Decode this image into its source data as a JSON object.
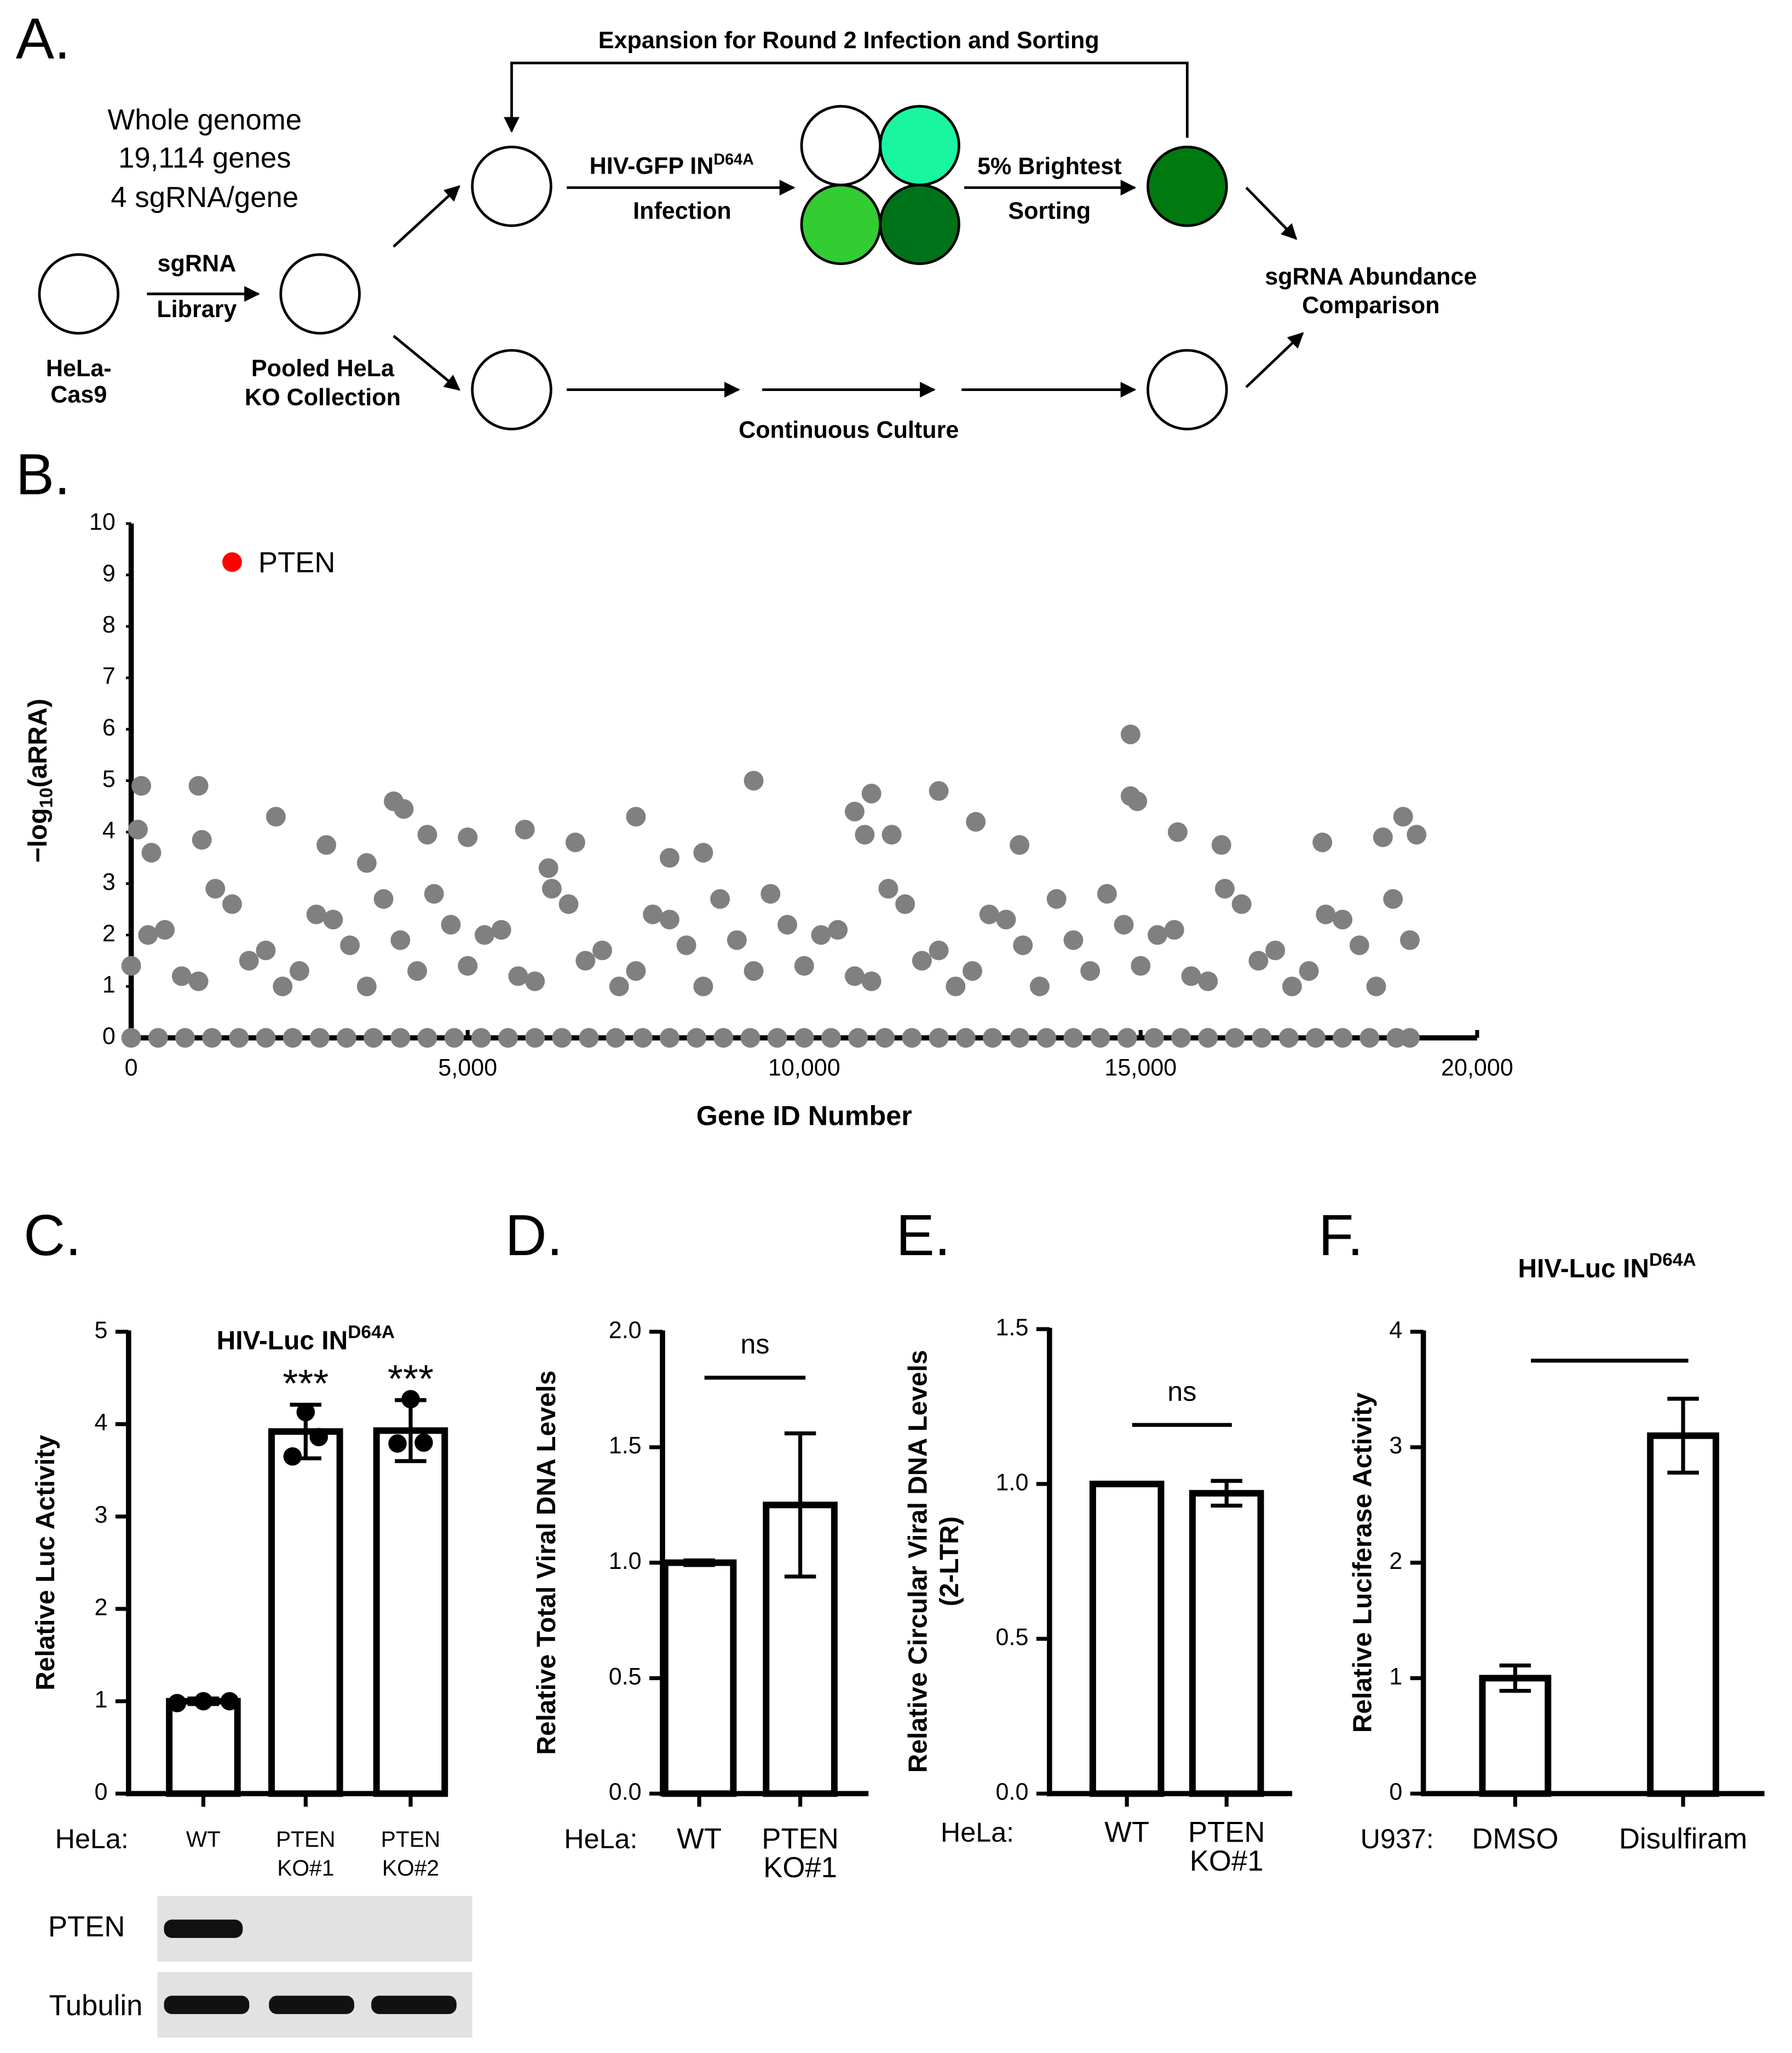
{
  "panel_labels": [
    "A.",
    "B.",
    "C.",
    "D.",
    "E.",
    "F."
  ],
  "diagram": {
    "loop_label": "Expansion for Round 2 Infection and Sorting",
    "library_info": [
      "Whole genome",
      "19,114 genes",
      "4 sgRNA/gene"
    ],
    "step1": [
      "sgRNA",
      "Library"
    ],
    "start_cells": [
      "HeLa-",
      "Cas9"
    ],
    "pool": [
      "Pooled HeLa",
      "KO Collection"
    ],
    "infection_top": "HIV-GFP IN",
    "infection_sup": "D64A",
    "infection_bottom": "Infection",
    "sort_top": "5% Brightest",
    "sort_bottom": "Sorting",
    "comparison": [
      "sgRNA Abundance",
      "Comparison"
    ],
    "culture": "Continuous Culture"
  },
  "blot": {
    "rows": [
      "PTEN",
      "Tubulin"
    ]
  },
  "chart_data": [
    {
      "type": "scatter",
      "ylabel": "−log",
      "ylabel_sub": "10",
      "ylabel_end": "(aRRA)",
      "xlabel": "Gene ID Number",
      "xlim": [
        0,
        20000
      ],
      "ylim": [
        0,
        10
      ],
      "xticks": [
        0,
        {
          "value": 5000,
          "label": "5,000"
        },
        {
          "value": 10000,
          "label": "10,000"
        },
        {
          "value": 15000,
          "label": "15,000"
        },
        {
          "value": 20000,
          "label": "20,000"
        }
      ],
      "yticks": [
        0,
        1,
        2,
        3,
        4,
        5,
        6,
        7,
        8,
        9,
        10
      ],
      "series": [
        {
          "name": "PTEN",
          "color": "#ff0000",
          "x": [
            1500
          ],
          "y": [
            9.25
          ]
        },
        {
          "color": "#808080",
          "x": [
            150,
            1000,
            9250,
            14850,
            14850,
            14950,
            12000,
            11000,
            3900,
            4050,
            2150,
            7500,
            18900,
            100,
            1050,
            4400,
            5000,
            5850,
            6600,
            10750,
            10900,
            11300,
            12550,
            15550,
            17700,
            18600,
            19100,
            300,
            2900,
            8500,
            13200,
            16200,
            8000,
            3500,
            6200
          ],
          "y": [
            4.9,
            4.9,
            5.0,
            5.9,
            4.7,
            4.6,
            4.8,
            4.75,
            4.6,
            4.45,
            4.3,
            4.3,
            4.3,
            4.05,
            3.85,
            3.95,
            3.9,
            4.05,
            3.8,
            4.4,
            3.95,
            3.95,
            4.2,
            4.0,
            3.8,
            3.9,
            3.95,
            3.6,
            3.75,
            3.6,
            3.75,
            3.75,
            3.5,
            3.4,
            3.3
          ]
        },
        {
          "color": "#808080",
          "x": [
            0,
            500,
            1000,
            1500,
            2000,
            2500,
            3000,
            3500,
            4000,
            4500,
            5000,
            5500,
            6000,
            6500,
            7000,
            7500,
            8000,
            8500,
            9000,
            9500,
            10000,
            10500,
            11000,
            11500,
            12000,
            12500,
            13000,
            13500,
            14000,
            14500,
            15000,
            15500,
            16000,
            16500,
            17000,
            17500,
            18000,
            18500,
            19000
          ],
          "y": [
            1.4,
            2.1,
            1.1,
            2.6,
            1.7,
            1.3,
            2.3,
            1.0,
            1.9,
            2.8,
            1.4,
            2.1,
            1.1,
            2.6,
            1.7,
            1.3,
            2.3,
            1.0,
            1.9,
            2.8,
            1.4,
            2.1,
            1.1,
            2.6,
            1.7,
            1.3,
            2.3,
            1.0,
            1.9,
            2.8,
            1.4,
            2.1,
            1.1,
            2.6,
            1.7,
            1.3,
            2.3,
            1.0,
            1.9
          ]
        },
        {
          "color": "#808080",
          "x": [
            250,
            750,
            1250,
            1750,
            2250,
            2750,
            3250,
            3750,
            4250,
            4750,
            5250,
            5750,
            6250,
            6750,
            7250,
            7750,
            8250,
            8750,
            9250,
            9750,
            10250,
            10750,
            11250,
            11750,
            12250,
            12750,
            13250,
            13750,
            14250,
            14750,
            15250,
            15750,
            16250,
            16750,
            17250,
            17750,
            18250,
            18750
          ],
          "y": [
            2.0,
            1.2,
            2.9,
            1.5,
            1.0,
            2.4,
            1.8,
            2.7,
            1.3,
            2.2,
            2.0,
            1.2,
            2.9,
            1.5,
            1.0,
            2.4,
            1.8,
            2.7,
            1.3,
            2.2,
            2.0,
            1.2,
            2.9,
            1.5,
            1.0,
            2.4,
            1.8,
            2.7,
            1.3,
            2.2,
            2.0,
            1.2,
            2.9,
            1.5,
            1.0,
            2.4,
            1.8,
            2.7
          ]
        },
        {
          "color": "#808080",
          "x": [
            0,
            400,
            800,
            1200,
            1600,
            2000,
            2400,
            2800,
            3200,
            3600,
            4000,
            4400,
            4800,
            5200,
            5600,
            6000,
            6400,
            6800,
            7200,
            7600,
            8000,
            8400,
            8800,
            9200,
            9600,
            10000,
            10400,
            10800,
            11200,
            11600,
            12000,
            12400,
            12800,
            13200,
            13600,
            14000,
            14400,
            14800,
            15200,
            15600,
            16000,
            16400,
            16800,
            17200,
            17600,
            18000,
            18400,
            18800,
            19000
          ],
          "y": [
            0,
            0,
            0,
            0,
            0,
            0,
            0,
            0,
            0,
            0,
            0,
            0,
            0,
            0,
            0,
            0,
            0,
            0,
            0,
            0,
            0,
            0,
            0,
            0,
            0,
            0,
            0,
            0,
            0,
            0,
            0,
            0,
            0,
            0,
            0,
            0,
            0,
            0,
            0,
            0,
            0,
            0,
            0,
            0,
            0,
            0,
            0,
            0,
            0
          ]
        }
      ]
    },
    {
      "type": "bar",
      "title": "HIV-Luc IN",
      "title_sup": "D64A",
      "ylabel": [
        "Relative Luc Activity"
      ],
      "group_label": "HeLa:",
      "categories": [
        [
          "WT"
        ],
        [
          "PTEN",
          "KO#1"
        ],
        [
          "PTEN",
          "KO#2"
        ]
      ],
      "values": [
        1.0,
        3.92,
        3.93
      ],
      "errors": [
        0.03,
        0.29,
        0.33
      ],
      "points": [
        [
          0.98,
          1.0,
          1.0
        ],
        [
          4.13,
          3.65,
          3.86
        ],
        [
          4.27,
          3.79,
          3.8
        ]
      ],
      "value_annotations": [
        null,
        "***",
        "***"
      ],
      "ylim": [
        0,
        5
      ],
      "yticks": [
        0,
        1,
        2,
        3,
        4,
        5
      ]
    },
    {
      "type": "bar",
      "ylabel": [
        "Relative Total Viral DNA Levels"
      ],
      "group_label": "HeLa:",
      "categories": [
        [
          "WT"
        ],
        [
          "PTEN",
          "KO#1"
        ]
      ],
      "values": [
        1.0,
        1.25
      ],
      "errors": [
        0.01,
        0.31
      ],
      "significance": "ns",
      "ylim": [
        0,
        2
      ],
      "yticks": [
        {
          "value": 0,
          "label": "0.0"
        },
        0.5,
        {
          "value": 1,
          "label": "1.0"
        },
        1.5,
        {
          "value": 2,
          "label": "2.0"
        }
      ]
    },
    {
      "type": "bar",
      "ylabel": [
        "Relative Circular Viral DNA Levels",
        "(2-LTR)"
      ],
      "group_label": "HeLa:",
      "categories": [
        [
          "WT"
        ],
        [
          "PTEN",
          "KO#1"
        ]
      ],
      "values": [
        1.0,
        0.97
      ],
      "errors": [
        0.0,
        0.04
      ],
      "significance": "ns",
      "ylim": [
        0,
        1.5
      ],
      "yticks": [
        {
          "value": 0,
          "label": "0.0"
        },
        0.5,
        {
          "value": 1,
          "label": "1.0"
        },
        1.5
      ]
    },
    {
      "type": "bar",
      "title": "HIV-Luc IN",
      "title_sup": "D64A",
      "ylabel": [
        "Relative Luciferase Activity"
      ],
      "group_label": "U937:",
      "categories": [
        [
          "DMSO"
        ],
        [
          "Disulfiram"
        ]
      ],
      "values": [
        1.0,
        3.1
      ],
      "errors": [
        0.11,
        0.32
      ],
      "significance_line": true,
      "ylim": [
        0,
        4
      ],
      "yticks": [
        0,
        1,
        2,
        3,
        4
      ]
    }
  ]
}
